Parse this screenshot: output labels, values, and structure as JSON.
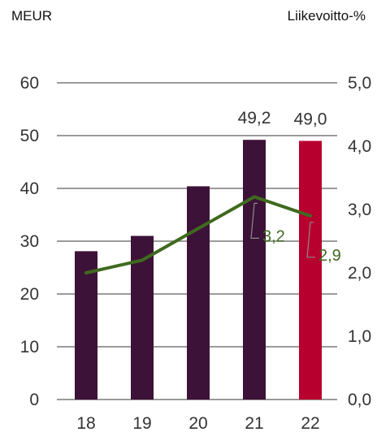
{
  "chart_data": {
    "type": "bar",
    "title": "",
    "y_left_label": "MEUR",
    "y_right_label": "Liikevoitto-%",
    "categories": [
      "18",
      "19",
      "20",
      "21",
      "22"
    ],
    "ylim_left": [
      0,
      60
    ],
    "yticks_left": [
      "0",
      "10",
      "20",
      "30",
      "40",
      "50",
      "60"
    ],
    "ylim_right": [
      0,
      5
    ],
    "yticks_right": [
      "0,0",
      "1,0",
      "2,0",
      "3,0",
      "4,0",
      "5,0"
    ],
    "grid": true,
    "series": [
      {
        "type": "bar",
        "axis": "left",
        "values": [
          28.1,
          31.0,
          40.4,
          49.2,
          49.0
        ],
        "data_labels": [
          "",
          "",
          "",
          "49,2",
          "49,0"
        ],
        "colors": [
          "#3d1238",
          "#3d1238",
          "#3d1238",
          "#3d1238",
          "#b8002e"
        ]
      },
      {
        "type": "line",
        "axis": "right",
        "values": [
          2.0,
          2.2,
          2.7,
          3.2,
          2.9
        ],
        "data_labels": [
          "",
          "",
          "",
          "3,2",
          "2,9"
        ],
        "color": "#3f6a1f"
      }
    ]
  }
}
